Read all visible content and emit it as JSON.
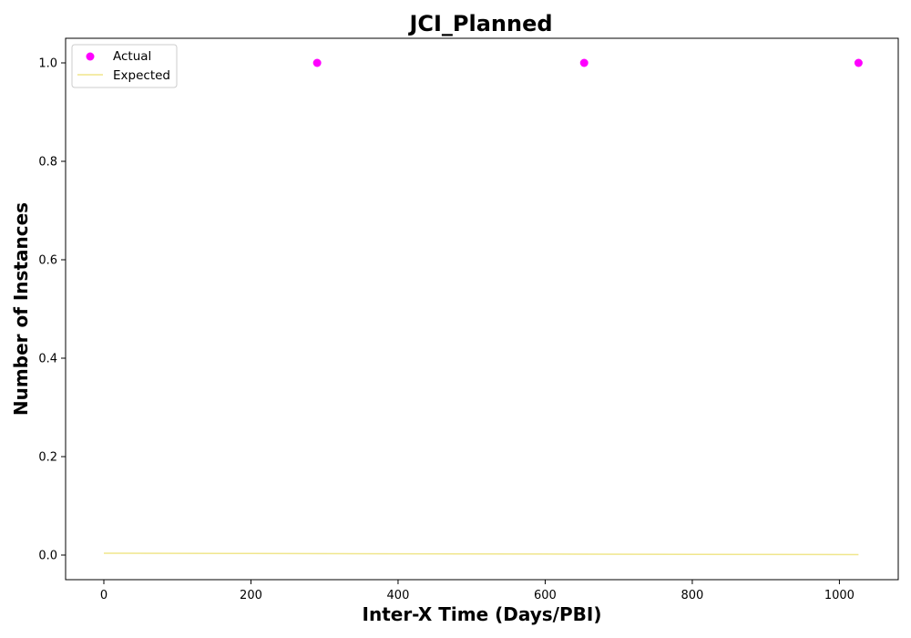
{
  "chart_data": {
    "type": "scatter",
    "title": "JCI_Planned",
    "xlabel": "Inter-X Time (Days/PBI)",
    "ylabel": "Number of Instances",
    "xlim": [
      -52,
      1080
    ],
    "ylim": [
      -0.05,
      1.05
    ],
    "xticks": [
      0,
      200,
      400,
      600,
      800,
      1000
    ],
    "yticks": [
      0.0,
      0.2,
      0.4,
      0.6,
      0.8,
      1.0
    ],
    "xtick_labels": [
      "0",
      "200",
      "400",
      "600",
      "800",
      "1000"
    ],
    "ytick_labels": [
      "0.0",
      "0.2",
      "0.4",
      "0.6",
      "0.8",
      "1.0"
    ],
    "legend_position": "top-left",
    "series": [
      {
        "name": "Actual",
        "kind": "scatter",
        "color": "#ff00ff",
        "points": [
          {
            "x": 290,
            "y": 1.0
          },
          {
            "x": 653,
            "y": 1.0
          },
          {
            "x": 1026,
            "y": 1.0
          }
        ]
      },
      {
        "name": "Expected",
        "kind": "line",
        "color": "#f0e68c",
        "points": [
          {
            "x": 0,
            "y": 0.0038
          },
          {
            "x": 200,
            "y": 0.0032
          },
          {
            "x": 400,
            "y": 0.0026
          },
          {
            "x": 600,
            "y": 0.002
          },
          {
            "x": 800,
            "y": 0.0015
          },
          {
            "x": 1026,
            "y": 0.001
          }
        ]
      }
    ]
  }
}
